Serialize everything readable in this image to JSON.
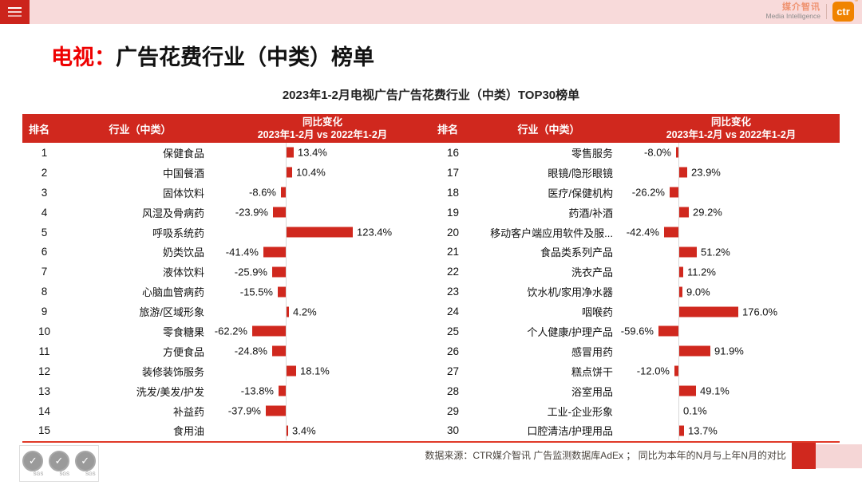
{
  "topbar": {
    "brand_cn": "媒介智讯",
    "brand_en": "Media Intelligence",
    "brand_logo": "ctr",
    "brand_reg": "®"
  },
  "title": {
    "highlight": "电视：",
    "rest": "广告花费行业（中类）榜单"
  },
  "subtitle": "2023年1-2月电视广告广告花费行业（中类）TOP30榜单",
  "table_header": {
    "rank": "排名",
    "industry": "行业（中类）",
    "change_line1": "同比变化",
    "change_line2": "2023年1-2月 vs 2022年1-2月"
  },
  "footer": {
    "source": "数据来源：CTR媒介智讯 广告监测数据库AdEx ；  同比为本年的N月与上年N月的对比",
    "sgs_label": "SGS"
  },
  "colors": {
    "accent_red": "#d0281e",
    "title_red": "#ee0000",
    "bar_red": "#d0281e",
    "topbar_pink": "#f8dada",
    "logo_orange": "#f08300",
    "footer_pink": "#f5d6d6",
    "axis_gray": "#d9d9d9"
  },
  "chart_data": {
    "type": "bar",
    "orientation": "horizontal",
    "title": "2023年1-2月电视广告广告花费行业（中类）TOP30榜单",
    "value_unit": "%",
    "panel_split": 15,
    "legend_position": "none",
    "grid": false,
    "ranks": [
      "1",
      "2",
      "3",
      "4",
      "5",
      "6",
      "7",
      "8",
      "9",
      "10",
      "11",
      "12",
      "13",
      "14",
      "15",
      "16",
      "17",
      "18",
      "19",
      "20",
      "21",
      "22",
      "23",
      "24",
      "25",
      "26",
      "27",
      "28",
      "29",
      "30"
    ],
    "categories": [
      "保健食品",
      "中国餐酒",
      "固体饮料",
      "风湿及骨病药",
      "呼吸系统药",
      "奶类饮品",
      "液体饮料",
      "心脑血管病药",
      "旅游/区域形象",
      "零食糖果",
      "方便食品",
      "装修装饰服务",
      "洗发/美发/护发",
      "补益药",
      "食用油",
      "零售服务",
      "眼镜/隐形眼镜",
      "医疗/保健机构",
      "药酒/补酒",
      "移动客户端应用软件及服...",
      "食品类系列产品",
      "洗衣产品",
      "饮水机/家用净水器",
      "咽喉药",
      "个人健康/护理产品",
      "感冒用药",
      "糕点饼干",
      "浴室用品",
      "工业-企业形象",
      "口腔清洁/护理用品"
    ],
    "values": [
      13.4,
      10.4,
      -8.6,
      -23.9,
      123.4,
      -41.4,
      -25.9,
      -15.5,
      4.2,
      -62.2,
      -24.8,
      18.1,
      -13.8,
      -37.9,
      3.4,
      -8.0,
      23.9,
      -26.2,
      29.2,
      -42.4,
      51.2,
      11.2,
      9.0,
      176.0,
      -59.6,
      91.9,
      -12.0,
      49.1,
      0.1,
      13.7
    ],
    "labels": [
      "13.4%",
      "10.4%",
      "-8.6%",
      "-23.9%",
      "123.4%",
      "-41.4%",
      "-25.9%",
      "-15.5%",
      "4.2%",
      "-62.2%",
      "-24.8%",
      "18.1%",
      "-13.8%",
      "-37.9%",
      "3.4%",
      "-8.0%",
      "23.9%",
      "-26.2%",
      "29.2%",
      "-42.4%",
      "51.2%",
      "11.2%",
      "9.0%",
      "176.0%",
      "-59.6%",
      "91.9%",
      "-12.0%",
      "49.1%",
      "0.1%",
      "13.7%"
    ]
  }
}
